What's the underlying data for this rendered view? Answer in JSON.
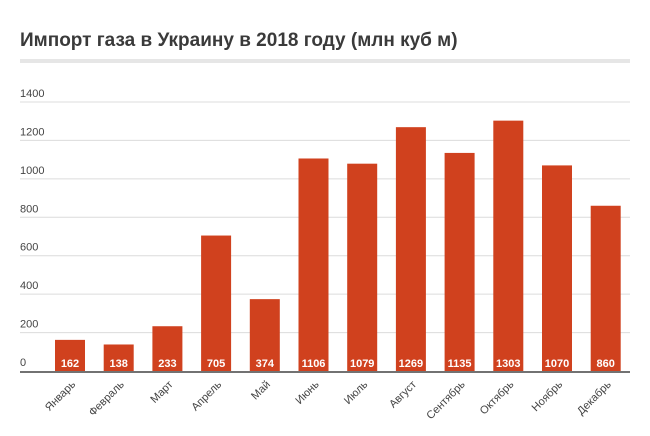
{
  "chart_data": {
    "type": "bar",
    "title": "Импорт газа в Украину в 2018 году (млн куб м)",
    "categories": [
      "Январь",
      "Февраль",
      "Март",
      "Апрель",
      "Май",
      "Июнь",
      "Июль",
      "Август",
      "Сентябрь",
      "Октябрь",
      "Ноябрь",
      "Декабрь"
    ],
    "values": [
      162,
      138,
      233,
      705,
      374,
      1106,
      1079,
      1269,
      1135,
      1303,
      1070,
      860
    ],
    "ylim": [
      0,
      1400
    ],
    "yticks": [
      0,
      200,
      400,
      600,
      800,
      1000,
      1200,
      1400
    ],
    "grid": true,
    "bar_color": "#d0411e",
    "data_labels": true
  }
}
